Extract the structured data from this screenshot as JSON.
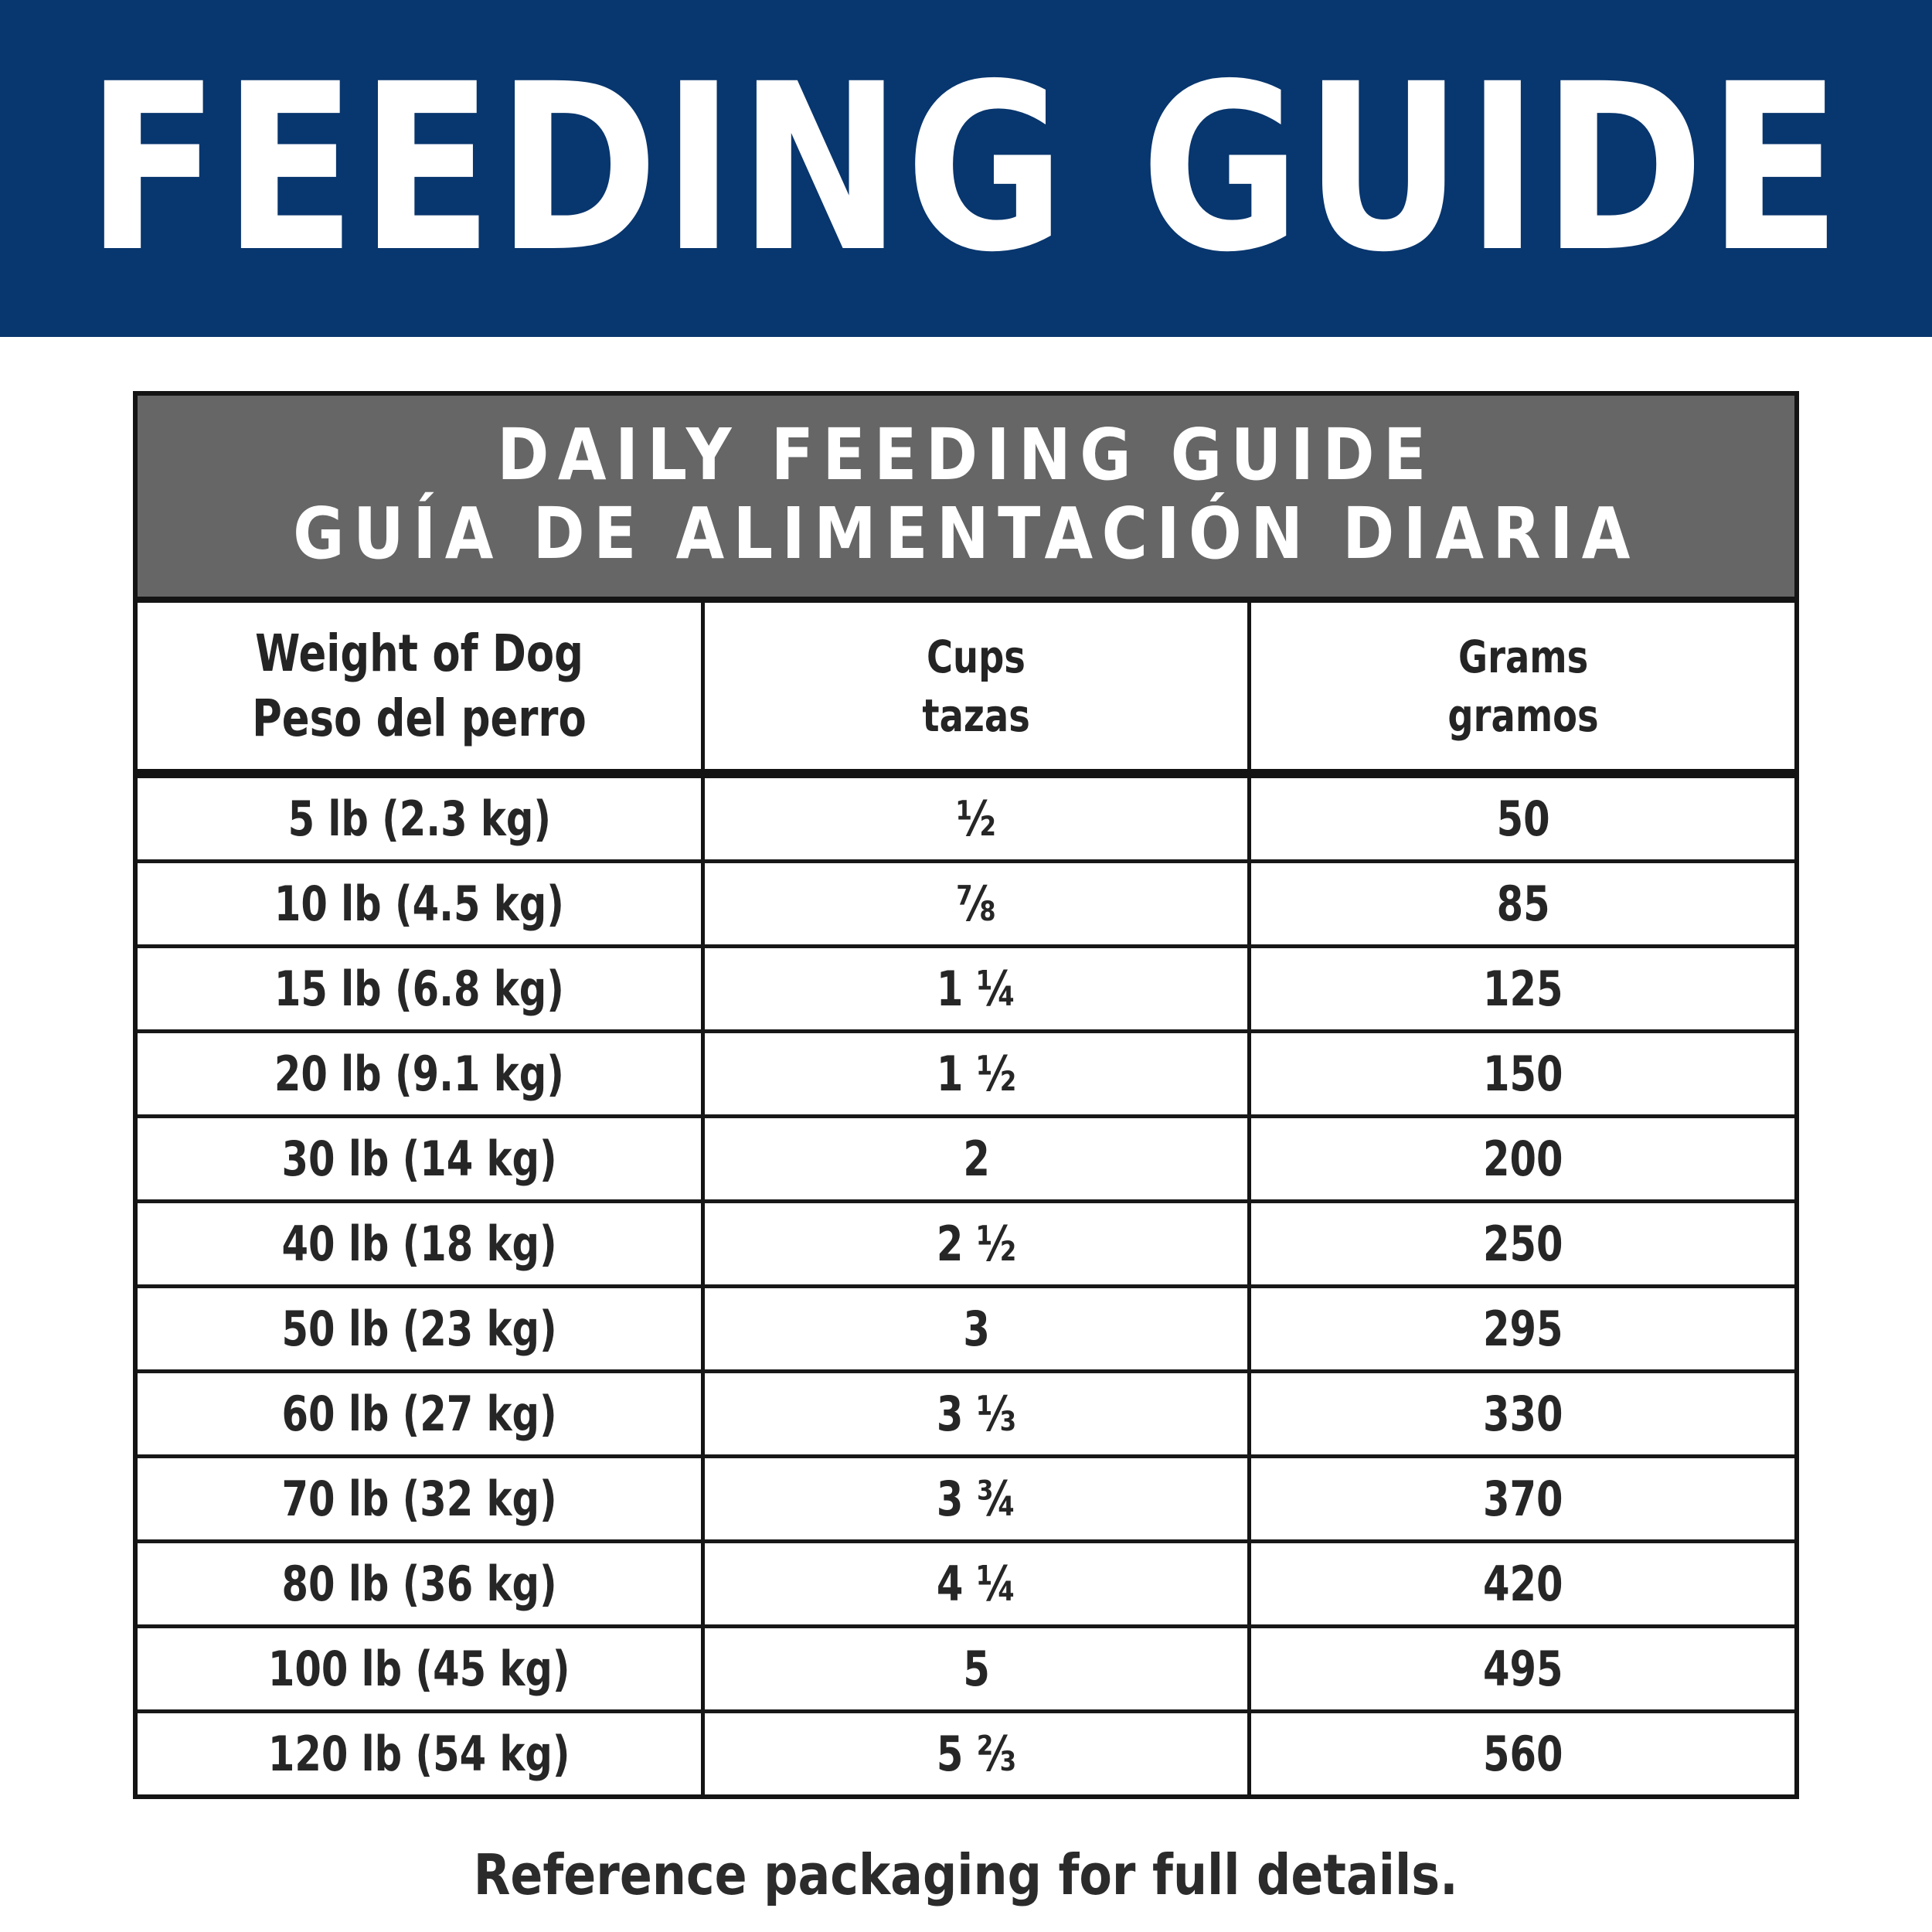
{
  "banner": {
    "title": "FEEDING GUIDE",
    "bg_color": "#08366e",
    "text_color": "#ffffff"
  },
  "guide_header": {
    "line_en": "DAILY FEEDING GUIDE",
    "line_es": "GUÍA DE ALIMENTACIÓN DIARIA",
    "bg_color": "#666666",
    "text_color": "#ffffff"
  },
  "table": {
    "columns": [
      {
        "en": "Weight of Dog",
        "es": "Peso del perro"
      },
      {
        "en": "Cups",
        "es": "tazas"
      },
      {
        "en": "Grams",
        "es": "gramos"
      }
    ],
    "rows": [
      {
        "weight": "5 lb (2.3 kg)",
        "cups": "½",
        "grams": "50"
      },
      {
        "weight": "10 lb (4.5 kg)",
        "cups": "⅞",
        "grams": "85"
      },
      {
        "weight": "15 lb (6.8 kg)",
        "cups": "1 ¼",
        "grams": "125"
      },
      {
        "weight": "20 lb (9.1 kg)",
        "cups": "1 ½",
        "grams": "150"
      },
      {
        "weight": "30 lb (14 kg)",
        "cups": "2",
        "grams": "200"
      },
      {
        "weight": "40 lb (18 kg)",
        "cups": "2 ½",
        "grams": "250"
      },
      {
        "weight": "50 lb (23 kg)",
        "cups": "3",
        "grams": "295"
      },
      {
        "weight": "60 lb (27 kg)",
        "cups": "3 ⅓",
        "grams": "330"
      },
      {
        "weight": "70 lb (32 kg)",
        "cups": "3 ¾",
        "grams": "370"
      },
      {
        "weight": "80 lb (36 kg)",
        "cups": "4 ¼",
        "grams": "420"
      },
      {
        "weight": "100 lb (45 kg)",
        "cups": "5",
        "grams": "495"
      },
      {
        "weight": "120 lb (54 kg)",
        "cups": "5 ⅔",
        "grams": "560"
      }
    ]
  },
  "footer": {
    "note": "Reference packaging for full details."
  },
  "colors": {
    "banner_blue": "#08366e",
    "header_gray": "#666666",
    "border_black": "#141414",
    "text_dark": "#262626"
  }
}
